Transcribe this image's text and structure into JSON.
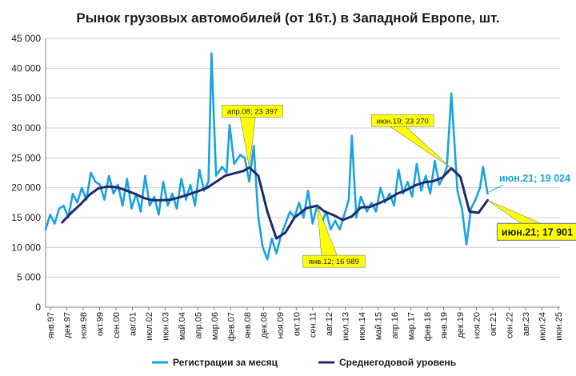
{
  "chart_data": {
    "type": "line",
    "title": "Рынок грузовых автомобилей (от 16т.) в Западной Европе, шт.",
    "xlabel": "",
    "ylabel": "",
    "ylim": [
      0,
      45000
    ],
    "yticks": [
      "0",
      "5 000",
      "10 000",
      "15 000",
      "20 000",
      "25 000",
      "30 000",
      "35 000",
      "40 000",
      "45 000"
    ],
    "xticks": [
      "янв.97",
      "дек.97",
      "ноя.98",
      "окт.99",
      "сен.00",
      "авг.01",
      "июл.02",
      "июн.03",
      "май.04",
      "апр.05",
      "мар.06",
      "фев.07",
      "янв.08",
      "дек.08",
      "ноя.09",
      "окт.10",
      "сен.11",
      "авг.12",
      "июл.13",
      "июн.14",
      "май.15",
      "апр.16",
      "мар.17",
      "фев.18",
      "янв.19",
      "дек.19",
      "ноя.20",
      "окт.21",
      "сен.22",
      "авг.23",
      "июл.24",
      "июн.25"
    ],
    "x_range": [
      "1997-01",
      "2025-06"
    ],
    "grid": true,
    "legend_position": "bottom",
    "colors": {
      "monthly": "#1aa3e0",
      "annual": "#1f2a6b",
      "callout_fill": "#ffff00",
      "callout_blue": "#1aa3e0"
    },
    "series": [
      {
        "name": "Регистрации за месяц",
        "x": [
          "1997-01",
          "1997-04",
          "1997-07",
          "1997-10",
          "1998-01",
          "1998-04",
          "1998-07",
          "1998-10",
          "1999-01",
          "1999-04",
          "1999-07",
          "1999-10",
          "2000-01",
          "2000-04",
          "2000-07",
          "2000-10",
          "2001-01",
          "2001-04",
          "2001-07",
          "2001-10",
          "2002-01",
          "2002-04",
          "2002-07",
          "2002-10",
          "2003-01",
          "2003-04",
          "2003-07",
          "2003-10",
          "2004-01",
          "2004-04",
          "2004-07",
          "2004-10",
          "2005-01",
          "2005-04",
          "2005-07",
          "2005-10",
          "2006-01",
          "2006-03",
          "2006-06",
          "2006-10",
          "2007-01",
          "2007-03",
          "2007-06",
          "2007-10",
          "2008-01",
          "2008-04",
          "2008-07",
          "2008-10",
          "2009-01",
          "2009-04",
          "2009-07",
          "2009-10",
          "2010-01",
          "2010-04",
          "2010-07",
          "2010-10",
          "2011-01",
          "2011-04",
          "2011-07",
          "2011-10",
          "2012-01",
          "2012-04",
          "2012-07",
          "2012-10",
          "2013-01",
          "2013-04",
          "2013-07",
          "2013-10",
          "2013-12",
          "2014-03",
          "2014-06",
          "2014-10",
          "2015-01",
          "2015-04",
          "2015-07",
          "2015-10",
          "2016-01",
          "2016-04",
          "2016-07",
          "2016-10",
          "2017-01",
          "2017-04",
          "2017-07",
          "2017-10",
          "2018-01",
          "2018-04",
          "2018-07",
          "2018-10",
          "2019-01",
          "2019-03",
          "2019-06",
          "2019-10",
          "2020-01",
          "2020-04",
          "2020-07",
          "2020-10",
          "2021-01",
          "2021-03",
          "2021-06"
        ],
        "y": [
          13000,
          15500,
          14000,
          16500,
          17000,
          15000,
          19000,
          17500,
          20000,
          18000,
          22500,
          21000,
          20500,
          18000,
          22000,
          19000,
          20500,
          17000,
          21500,
          16500,
          19000,
          16000,
          22000,
          17000,
          18500,
          15500,
          21000,
          17000,
          19000,
          16500,
          21500,
          18000,
          20500,
          17000,
          23000,
          19500,
          21000,
          42500,
          22000,
          23500,
          22500,
          30500,
          24000,
          25500,
          25000,
          21000,
          27000,
          15000,
          10000,
          8000,
          11500,
          9000,
          12000,
          14000,
          16000,
          15000,
          17500,
          15000,
          19500,
          14000,
          17000,
          14000,
          16000,
          13000,
          14500,
          13000,
          15500,
          18000,
          28700,
          15000,
          18500,
          16000,
          17500,
          16000,
          20000,
          17500,
          19000,
          17000,
          23000,
          19000,
          21000,
          18500,
          24000,
          19500,
          22000,
          19000,
          24500,
          20500,
          22000,
          23500,
          35800,
          19500,
          16500,
          10500,
          16500,
          18000,
          20000,
          23500,
          19024
        ]
      },
      {
        "name": "Среднегодовой уровень",
        "x": [
          "1997-12",
          "1998-06",
          "1998-12",
          "1999-06",
          "1999-12",
          "2000-06",
          "2000-12",
          "2001-06",
          "2001-12",
          "2002-06",
          "2002-12",
          "2003-06",
          "2003-12",
          "2004-06",
          "2004-12",
          "2005-06",
          "2005-12",
          "2006-06",
          "2006-12",
          "2007-06",
          "2007-12",
          "2008-04",
          "2008-10",
          "2009-04",
          "2009-10",
          "2010-04",
          "2010-10",
          "2011-06",
          "2012-01",
          "2012-06",
          "2012-12",
          "2013-06",
          "2013-12",
          "2014-06",
          "2014-12",
          "2015-06",
          "2015-12",
          "2016-06",
          "2016-12",
          "2017-06",
          "2017-12",
          "2018-06",
          "2018-12",
          "2019-06",
          "2019-12",
          "2020-06",
          "2020-12",
          "2021-06"
        ],
        "y": [
          14200,
          15800,
          17200,
          18800,
          19900,
          20200,
          20100,
          19600,
          19000,
          18300,
          17900,
          17900,
          18000,
          18400,
          18900,
          19400,
          20000,
          21000,
          22000,
          22400,
          22800,
          23397,
          22000,
          16000,
          11500,
          12500,
          15000,
          16600,
          16989,
          16000,
          15400,
          14600,
          15200,
          16700,
          16800,
          17400,
          18100,
          19000,
          19600,
          20400,
          20900,
          21100,
          21700,
          23270,
          21800,
          16000,
          15800,
          17901
        ]
      }
    ],
    "annotations": [
      {
        "label": "апр.08;  23 397",
        "series": "Среднегодовой уровень",
        "x": "2008-04",
        "y": 23397
      },
      {
        "label": "янв.12;  16 989",
        "series": "Среднегодовой уровень",
        "x": "2012-01",
        "y": 16989
      },
      {
        "label": "июн.19;  23 270",
        "series": "Среднегодовой уровень",
        "x": "2019-06",
        "y": 23270
      },
      {
        "label": "июн.21;  17 901",
        "series": "Среднегодовой уровень",
        "x": "2021-06",
        "y": 17901,
        "emphasis": "big"
      },
      {
        "label": "июн.21; 19 024",
        "series": "Регистрации за месяц",
        "x": "2021-06",
        "y": 19024,
        "emphasis": "blue"
      }
    ]
  }
}
